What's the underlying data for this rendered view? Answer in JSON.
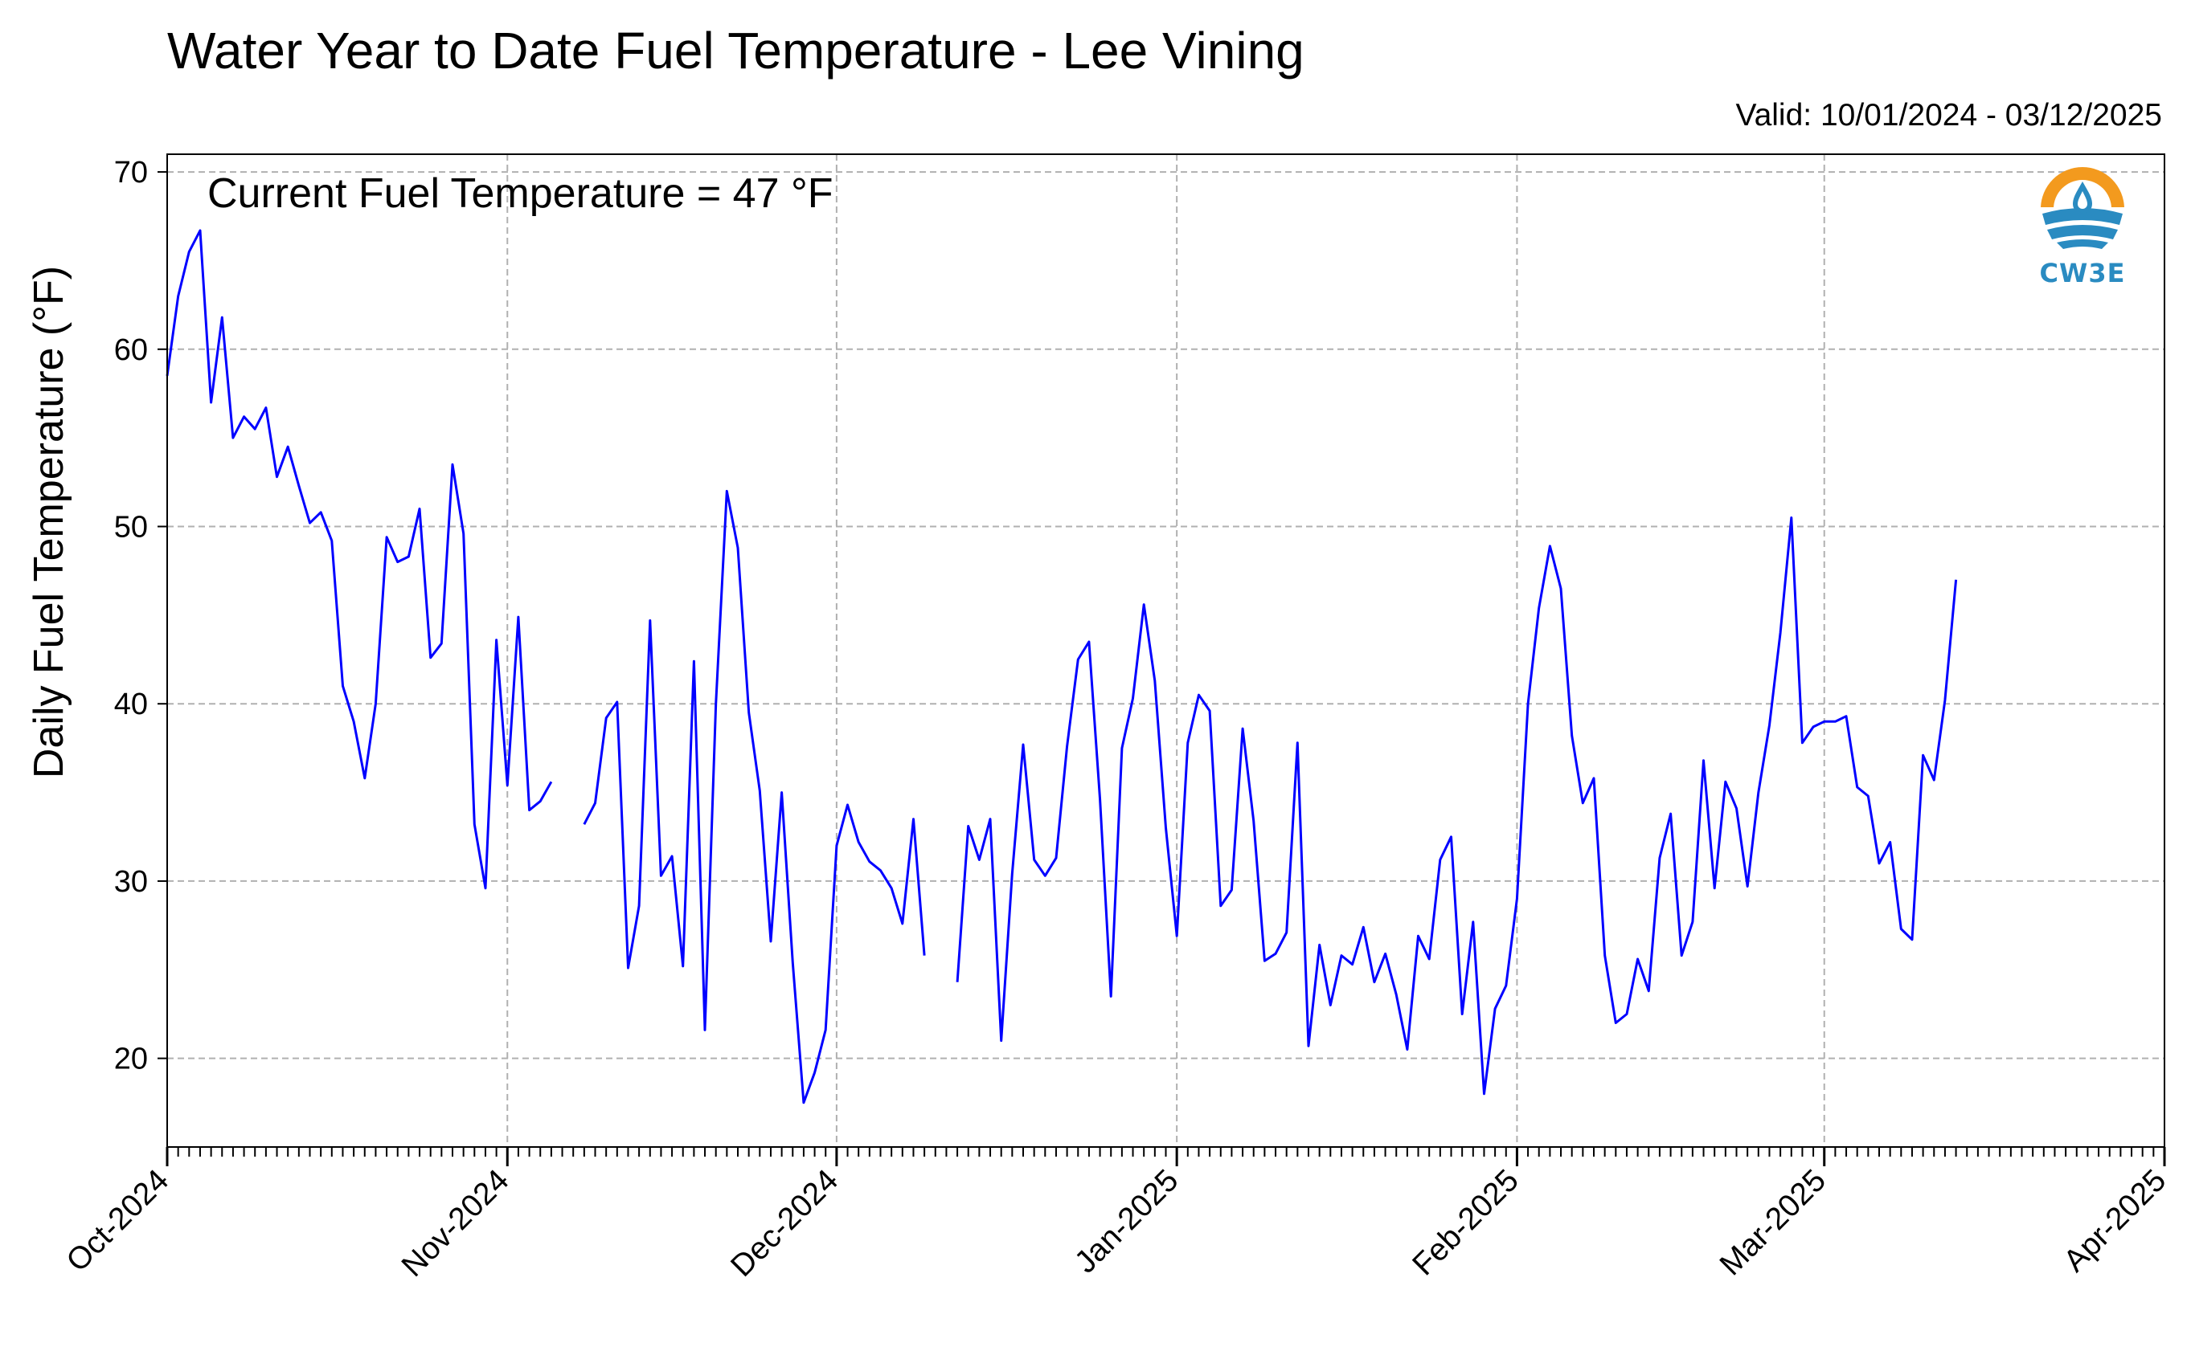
{
  "title": "Water Year to Date Fuel Temperature - Lee Vining",
  "valid": "Valid: 10/01/2024 - 03/12/2025",
  "annotation": "Current Fuel Temperature = 47 °F",
  "logo": {
    "text": "CW3E",
    "colors": {
      "sun": "#f39a1e",
      "water": "#2a8bc1"
    }
  },
  "colors": {
    "line": "#0000ff",
    "grid": "#b0b0b0"
  },
  "chart_data": {
    "type": "line",
    "title": "Water Year to Date Fuel Temperature - Lee Vining",
    "xlabel": "",
    "ylabel": "Daily Fuel Temperature (°F)",
    "xlim": [
      "2024-10-01",
      "2025-04-01"
    ],
    "ylim": [
      15,
      71
    ],
    "yticks": [
      20,
      30,
      40,
      50,
      60,
      70
    ],
    "xticks": [
      "2024-10-01",
      "2024-11-01",
      "2024-12-01",
      "2025-01-01",
      "2025-02-01",
      "2025-03-01",
      "2025-04-01"
    ],
    "xtick_labels": [
      "Oct-2024",
      "Nov-2024",
      "Dec-2024",
      "Jan-2025",
      "Feb-2025",
      "Mar-2025",
      "Apr-2025"
    ],
    "grid": true,
    "series": [
      {
        "start_date": "2024-10-01",
        "values": [
          58.5,
          63,
          65.5,
          66.7,
          57,
          61.8,
          55,
          56.2,
          55.5,
          56.7,
          52.8,
          54.5,
          52.3,
          50.2,
          50.8,
          49.2,
          41,
          39,
          35.8,
          40,
          49.4,
          48,
          48.3,
          51,
          42.6,
          43.4,
          53.5,
          49.6,
          33.2,
          29.6,
          43.6,
          35.4,
          44.9,
          34,
          34.5,
          35.6,
          null,
          null,
          33.2,
          34.4,
          39.2,
          40.1,
          25.1,
          28.6,
          44.7,
          30.3,
          31.4,
          25.2,
          42.4,
          21.6,
          40,
          52,
          48.8,
          39.5,
          35.1,
          26.6,
          35,
          25.4,
          17.5,
          19.2,
          21.6,
          32,
          34.3,
          32.2,
          31.1,
          30.6,
          29.6,
          27.6,
          33.5,
          25.8,
          null,
          null,
          24.3,
          33.1,
          31.2,
          33.5,
          21,
          30.4,
          37.7,
          31.2,
          30.3,
          31.3,
          37.6,
          42.5,
          43.5,
          34.6,
          23.5,
          37.5,
          40.3,
          45.6,
          41.3,
          33,
          26.9,
          37.8,
          40.5,
          39.6,
          28.6,
          29.5,
          38.6,
          33.4,
          25.5,
          25.9,
          27.1,
          37.8,
          20.7,
          26.4,
          23,
          25.8,
          25.3,
          27.4,
          24.3,
          25.9,
          23.6,
          20.5,
          26.9,
          25.6,
          31.2,
          32.5,
          22.5,
          27.7,
          18,
          22.8,
          24.1,
          29,
          40,
          45.4,
          48.9,
          46.5,
          38.2,
          34.4,
          35.8,
          25.8,
          22,
          22.5,
          25.6,
          23.8,
          31.3,
          33.8,
          25.8,
          27.7,
          36.8,
          29.6,
          35.6,
          34.1,
          29.7,
          35,
          38.8,
          44,
          50.5,
          37.8,
          38.7,
          39,
          39,
          39.3,
          35.3,
          34.8,
          31,
          32.2,
          27.3,
          26.7,
          37.1,
          35.7,
          40.2,
          47
        ]
      }
    ]
  }
}
